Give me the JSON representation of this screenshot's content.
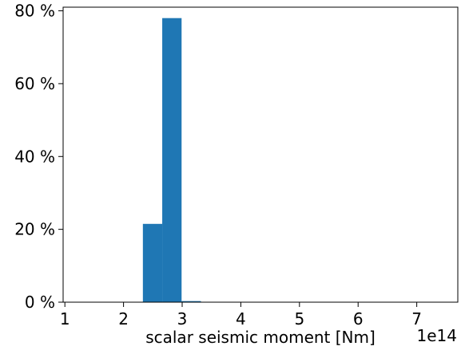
{
  "chart_data": {
    "type": "bar",
    "title": "",
    "xlabel": "scalar seismic moment [Nm]",
    "ylabel": "",
    "x_offset_label": "1e14",
    "xlim": [
      0.97,
      7.7
    ],
    "ylim": [
      0,
      81
    ],
    "grid": false,
    "bar_color": "#1f77b4",
    "bins": [
      {
        "x0": 2.33,
        "x1": 2.66,
        "value": 21.5
      },
      {
        "x0": 2.66,
        "x1": 2.99,
        "value": 78.0
      },
      {
        "x0": 2.99,
        "x1": 3.32,
        "value": 0.3
      }
    ],
    "x_ticks": [
      {
        "value": 1,
        "label": "1"
      },
      {
        "value": 2,
        "label": "2"
      },
      {
        "value": 3,
        "label": "3"
      },
      {
        "value": 4,
        "label": "4"
      },
      {
        "value": 5,
        "label": "5"
      },
      {
        "value": 6,
        "label": "6"
      },
      {
        "value": 7,
        "label": "7"
      }
    ],
    "y_ticks": [
      {
        "value": 0,
        "label": "0 %"
      },
      {
        "value": 20,
        "label": "20 %"
      },
      {
        "value": 40,
        "label": "40 %"
      },
      {
        "value": 60,
        "label": "60 %"
      },
      {
        "value": 80,
        "label": "80 %"
      }
    ]
  }
}
